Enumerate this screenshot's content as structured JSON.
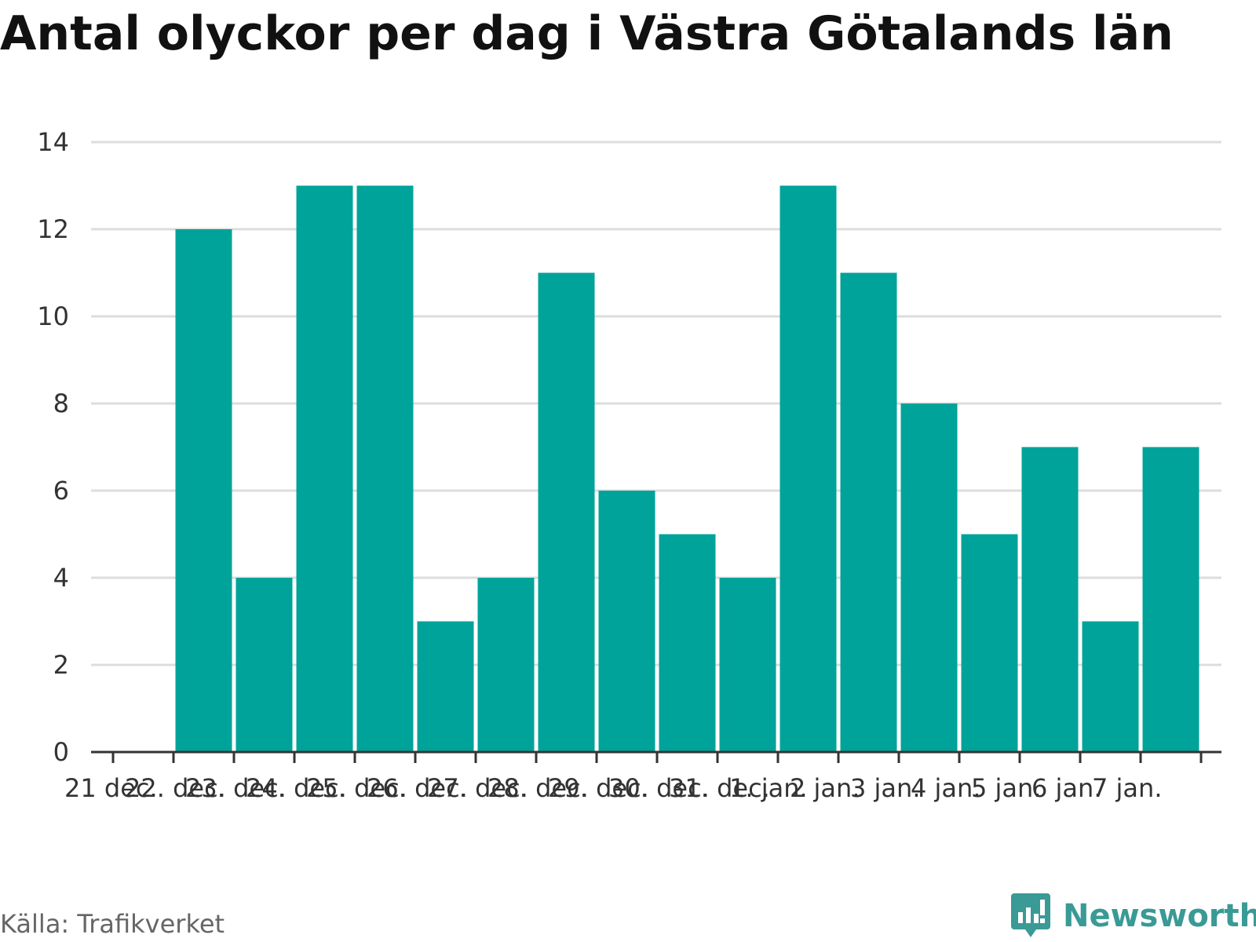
{
  "title": "Antal olyckor per dag i Västra Götalands län",
  "source": "Källa: Trafikverket",
  "brand": {
    "name": "Newsworthy",
    "icon": "newsworthy-logo-icon",
    "color": "#3a9a95"
  },
  "chart_data": {
    "type": "bar",
    "title": "Antal olyckor per dag i Västra Götalands län",
    "xlabel": "",
    "ylabel": "",
    "ylim": [
      0,
      14
    ],
    "yticks": [
      0,
      2,
      4,
      6,
      8,
      10,
      12,
      14
    ],
    "grid": true,
    "bar_color": "#00a39a",
    "categories": [
      "21 dec.",
      "22. dec.",
      "23. dec.",
      "24. dec.",
      "25. dec.",
      "26. dec.",
      "27. dec.",
      "28. dec.",
      "29. dec.",
      "30. dec.",
      "31. dec.",
      "1. jan.",
      "2 jan.",
      "3 jan.",
      "4 jan.",
      "5 jan.",
      "6 jan.",
      "7 jan."
    ],
    "values": [
      null,
      12,
      4,
      13,
      13,
      3,
      4,
      11,
      6,
      5,
      4,
      13,
      11,
      8,
      5,
      7,
      3,
      7
    ]
  }
}
